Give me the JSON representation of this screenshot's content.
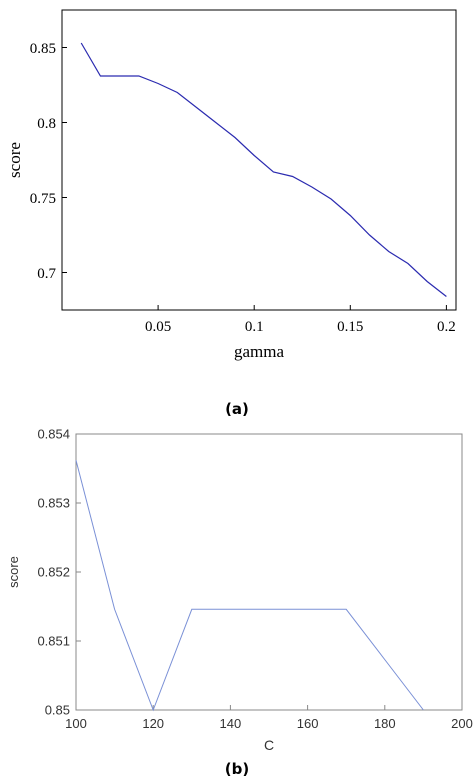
{
  "captions": [
    "(a)",
    "(b)"
  ],
  "chart_data": [
    {
      "type": "line",
      "xlabel": "gamma",
      "ylabel": "score",
      "xlim": [
        0,
        0.205
      ],
      "ylim": [
        0.675,
        0.875
      ],
      "xticks": [
        0.05,
        0.1,
        0.15,
        0.2
      ],
      "xtick_labels": [
        "0.05",
        "0.1",
        "0.15",
        "0.2"
      ],
      "yticks": [
        0.7,
        0.75,
        0.8,
        0.85
      ],
      "ytick_labels": [
        "0.7",
        "0.75",
        "0.8",
        "0.85"
      ],
      "grid": false,
      "color": "#2b2bb0",
      "x": [
        0.01,
        0.02,
        0.03,
        0.04,
        0.05,
        0.06,
        0.07,
        0.08,
        0.09,
        0.1,
        0.11,
        0.12,
        0.13,
        0.14,
        0.15,
        0.16,
        0.17,
        0.18,
        0.19,
        0.2
      ],
      "y": [
        0.853,
        0.831,
        0.831,
        0.831,
        0.826,
        0.82,
        0.81,
        0.8,
        0.79,
        0.778,
        0.767,
        0.764,
        0.757,
        0.749,
        0.738,
        0.725,
        0.714,
        0.706,
        0.694,
        0.684
      ]
    },
    {
      "type": "line",
      "xlabel": "C",
      "ylabel": "score",
      "xlim": [
        100,
        200
      ],
      "ylim": [
        0.85,
        0.854
      ],
      "xticks": [
        100,
        120,
        140,
        160,
        180,
        200
      ],
      "xtick_labels": [
        "100",
        "120",
        "140",
        "160",
        "180",
        "200"
      ],
      "yticks": [
        0.85,
        0.851,
        0.852,
        0.853,
        0.854
      ],
      "ytick_labels": [
        "0.85",
        "0.851",
        "0.852",
        "0.853",
        "0.854"
      ],
      "grid": false,
      "color": "#7a90d6",
      "x": [
        100,
        110,
        120,
        130,
        140,
        150,
        160,
        170,
        180,
        190
      ],
      "y": [
        0.85362,
        0.85146,
        0.85,
        0.85146,
        0.85146,
        0.85146,
        0.85146,
        0.85146,
        0.85073,
        0.85
      ]
    }
  ]
}
